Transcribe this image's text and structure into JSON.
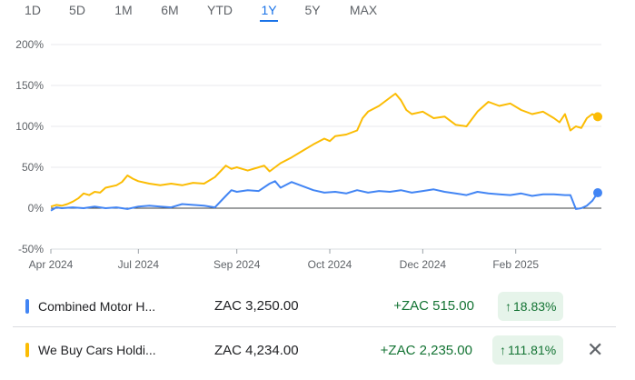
{
  "range_tabs": [
    {
      "label": "1D",
      "active": false
    },
    {
      "label": "5D",
      "active": false
    },
    {
      "label": "1M",
      "active": false
    },
    {
      "label": "6M",
      "active": false
    },
    {
      "label": "YTD",
      "active": false
    },
    {
      "label": "1Y",
      "active": true
    },
    {
      "label": "5Y",
      "active": false
    },
    {
      "label": "MAX",
      "active": false
    }
  ],
  "chart_data": {
    "type": "line",
    "ylim": [
      -50,
      200
    ],
    "y_ticks": [
      "200%",
      "150%",
      "100%",
      "50%",
      "0%",
      "-50%"
    ],
    "y_tick_values": [
      200,
      150,
      100,
      50,
      0,
      -50
    ],
    "x_ticks": [
      "Apr 2024",
      "Jul 2024",
      "Sep 2024",
      "Oct 2024",
      "Dec 2024",
      "Feb 2025"
    ],
    "x_tick_positions": [
      0.0,
      0.16,
      0.34,
      0.51,
      0.68,
      0.85
    ],
    "colors": {
      "series1": "#4285f4",
      "series2": "#fbbc04"
    },
    "series": [
      {
        "name": "Combined Motor H...",
        "color": "#4285f4",
        "x": [
          0,
          0.01,
          0.02,
          0.04,
          0.06,
          0.08,
          0.1,
          0.12,
          0.14,
          0.16,
          0.18,
          0.2,
          0.22,
          0.24,
          0.26,
          0.28,
          0.3,
          0.32,
          0.33,
          0.34,
          0.36,
          0.38,
          0.4,
          0.41,
          0.42,
          0.44,
          0.46,
          0.48,
          0.5,
          0.52,
          0.54,
          0.56,
          0.58,
          0.6,
          0.62,
          0.64,
          0.66,
          0.68,
          0.7,
          0.72,
          0.74,
          0.76,
          0.78,
          0.8,
          0.82,
          0.84,
          0.86,
          0.88,
          0.9,
          0.92,
          0.94,
          0.95,
          0.96,
          0.97,
          0.98,
          0.99,
          1.0
        ],
        "values": [
          -3,
          1,
          0,
          1,
          0,
          2,
          0,
          1,
          -1,
          2,
          3,
          2,
          1,
          5,
          4,
          3,
          1,
          15,
          22,
          20,
          22,
          21,
          30,
          33,
          25,
          32,
          27,
          22,
          19,
          20,
          18,
          22,
          19,
          21,
          20,
          22,
          19,
          21,
          23,
          20,
          18,
          16,
          20,
          18,
          17,
          16,
          18,
          15,
          17,
          17,
          16,
          16,
          -1,
          0,
          3,
          9,
          18.83
        ]
      },
      {
        "name": "We Buy Cars Holdi...",
        "color": "#fbbc04",
        "x": [
          0,
          0.01,
          0.02,
          0.03,
          0.04,
          0.05,
          0.06,
          0.07,
          0.08,
          0.09,
          0.1,
          0.12,
          0.13,
          0.14,
          0.15,
          0.16,
          0.18,
          0.2,
          0.22,
          0.24,
          0.26,
          0.28,
          0.3,
          0.31,
          0.32,
          0.33,
          0.34,
          0.35,
          0.36,
          0.38,
          0.39,
          0.4,
          0.42,
          0.44,
          0.46,
          0.48,
          0.5,
          0.51,
          0.52,
          0.54,
          0.56,
          0.57,
          0.58,
          0.6,
          0.62,
          0.63,
          0.64,
          0.65,
          0.66,
          0.68,
          0.7,
          0.72,
          0.74,
          0.76,
          0.78,
          0.8,
          0.82,
          0.84,
          0.86,
          0.88,
          0.9,
          0.92,
          0.93,
          0.94,
          0.95,
          0.96,
          0.97,
          0.98,
          0.99,
          1.0
        ],
        "values": [
          2,
          4,
          3,
          5,
          8,
          12,
          18,
          16,
          20,
          19,
          25,
          28,
          32,
          40,
          36,
          33,
          30,
          28,
          30,
          28,
          31,
          30,
          38,
          45,
          52,
          48,
          50,
          48,
          46,
          50,
          52,
          45,
          55,
          62,
          70,
          78,
          85,
          82,
          88,
          90,
          95,
          110,
          118,
          125,
          135,
          140,
          132,
          120,
          115,
          118,
          110,
          112,
          102,
          100,
          118,
          130,
          125,
          128,
          120,
          115,
          118,
          110,
          105,
          115,
          95,
          100,
          98,
          110,
          115,
          111.81
        ]
      }
    ]
  },
  "rows": [
    {
      "name": "Combined Motor H...",
      "price": "ZAC 3,250.00",
      "change": "+ZAC 515.00",
      "pct": "18.83%",
      "arrow": "↑"
    },
    {
      "name": "We Buy Cars Holdi...",
      "price": "ZAC 4,234.00",
      "change": "+ZAC 2,235.00",
      "pct": "111.81%",
      "arrow": "↑",
      "close": "✕"
    }
  ]
}
